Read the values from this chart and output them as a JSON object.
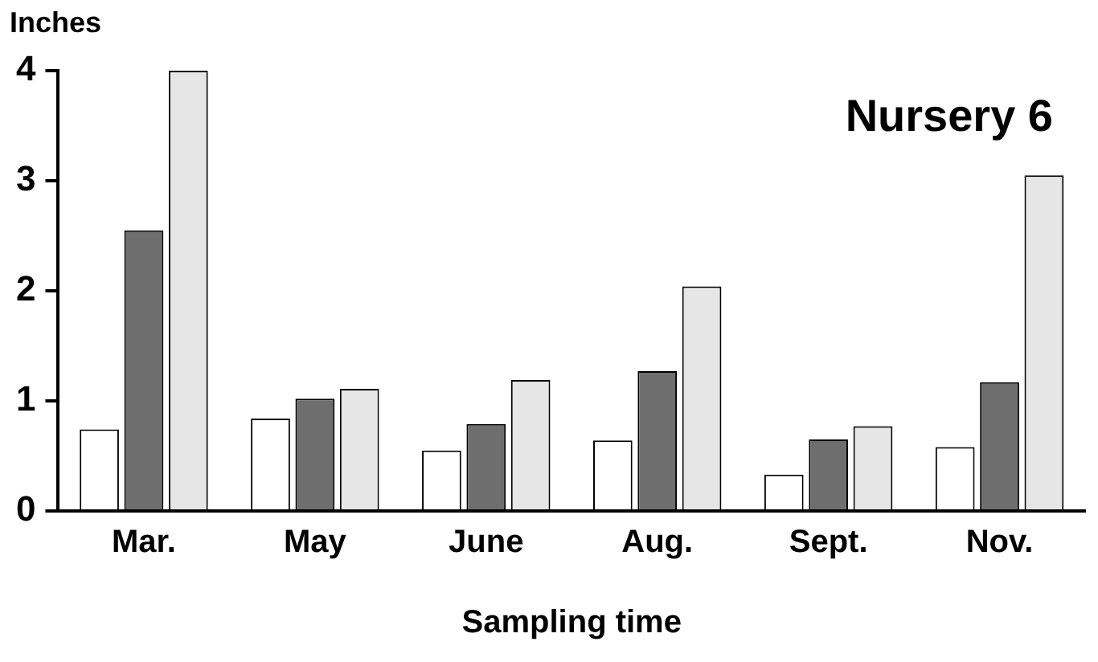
{
  "chart_data": {
    "type": "bar",
    "title": "Nursery 6",
    "xlabel": "Sampling time",
    "ylabel": "Inches",
    "categories": [
      "Mar.",
      "May",
      "June",
      "Aug.",
      "Sept.",
      "Nov."
    ],
    "series": [
      {
        "color": "#ffffff",
        "values": [
          0.74,
          0.84,
          0.55,
          0.64,
          0.33,
          0.58
        ]
      },
      {
        "color": "#6e6e6e",
        "values": [
          2.55,
          1.02,
          0.79,
          1.27,
          0.65,
          1.17
        ]
      },
      {
        "color": "#e6e6e6",
        "values": [
          4.0,
          1.11,
          1.19,
          2.04,
          0.77,
          3.05
        ]
      }
    ],
    "ylim": [
      0,
      4
    ],
    "yticks": [
      0,
      1,
      2,
      3,
      4
    ],
    "grid": false,
    "legend": false
  }
}
